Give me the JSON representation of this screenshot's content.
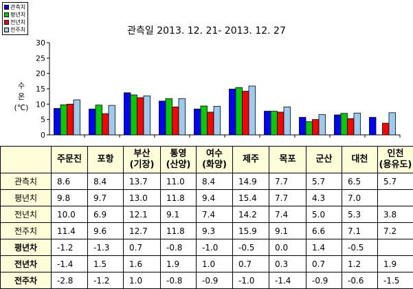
{
  "legend": [
    {
      "label": "관측치",
      "color": "#0000ff"
    },
    {
      "label": "평년치",
      "color": "#00cc00"
    },
    {
      "label": "전년치",
      "color": "#ff0000"
    },
    {
      "label": "전주치",
      "color": "#99ccee"
    }
  ],
  "chart_data": {
    "type": "bar",
    "title": "관측일 2013. 12. 21-  2013. 12. 27",
    "ylabel_chars": [
      "수",
      "온",
      "(℃)"
    ],
    "ylim": [
      0,
      30
    ],
    "yticks": [
      0,
      5,
      10,
      15,
      20,
      25,
      30
    ],
    "grid": false,
    "legend_position": "top-left",
    "categories": [
      "주문진",
      "포항",
      "부산(기장)",
      "통영(산양)",
      "여수(화양)",
      "제주",
      "목포",
      "군산",
      "대천",
      "인천(용유도)"
    ],
    "series": [
      {
        "name": "관측치",
        "color": "#0000ff",
        "values": [
          8.6,
          8.4,
          13.7,
          11.0,
          8.4,
          14.9,
          7.7,
          5.7,
          6.5,
          5.7
        ]
      },
      {
        "name": "평년치",
        "color": "#00cc00",
        "values": [
          9.8,
          9.7,
          13.0,
          11.8,
          9.4,
          15.4,
          7.7,
          4.3,
          7.0,
          null
        ]
      },
      {
        "name": "전년치",
        "color": "#ff0000",
        "values": [
          10.0,
          6.9,
          12.1,
          9.1,
          7.4,
          14.2,
          7.4,
          5.0,
          5.3,
          3.8
        ]
      },
      {
        "name": "전주치",
        "color": "#99ccee",
        "values": [
          11.4,
          9.6,
          12.7,
          11.8,
          9.3,
          15.9,
          9.1,
          6.6,
          7.1,
          7.2
        ]
      }
    ]
  },
  "table": {
    "header": [
      [
        "주문진"
      ],
      [
        "포항"
      ],
      [
        "부산",
        "(기장)"
      ],
      [
        "통영",
        "(산양)"
      ],
      [
        "여수",
        "(화양)"
      ],
      [
        "제주"
      ],
      [
        "목포"
      ],
      [
        "군산"
      ],
      [
        "대천"
      ],
      [
        "인천",
        "(용유도)"
      ]
    ],
    "rows": [
      {
        "label": "관측치",
        "bold": false,
        "cells": [
          "8.6",
          "8.4",
          "13.7",
          "11.0",
          "8.4",
          "14.9",
          "7.7",
          "5.7",
          "6.5",
          "5.7"
        ]
      },
      {
        "label": "평년치",
        "bold": false,
        "cells": [
          "9.8",
          "9.7",
          "13.0",
          "11.8",
          "9.4",
          "15.4",
          "7.7",
          "4.3",
          "7.0",
          ""
        ]
      },
      {
        "label": "전년치",
        "bold": false,
        "cells": [
          "10.0",
          "6.9",
          "12.1",
          "9.1",
          "7.4",
          "14.2",
          "7.4",
          "5.0",
          "5.3",
          "3.8"
        ]
      },
      {
        "label": "전주치",
        "bold": false,
        "cells": [
          "11.4",
          "9.6",
          "12.7",
          "11.8",
          "9.3",
          "15.9",
          "9.1",
          "6.6",
          "7.1",
          "7.2"
        ]
      },
      {
        "label": "평년차",
        "bold": true,
        "cells": [
          "-1.2",
          "-1.3",
          "0.7",
          "-0.8",
          "-1.0",
          "-0.5",
          "0.0",
          "1.4",
          "-0.5",
          ""
        ]
      },
      {
        "label": "전년차",
        "bold": true,
        "cells": [
          "-1.4",
          "1.5",
          "1.6",
          "1.9",
          "1.0",
          "0.7",
          "0.3",
          "0.7",
          "1.2",
          "1.9"
        ]
      },
      {
        "label": "전주차",
        "bold": true,
        "cells": [
          "-2.8",
          "-1.2",
          "1.0",
          "-0.8",
          "-0.9",
          "-1.0",
          "-1.4",
          "-0.9",
          "-0.6",
          "-1.5"
        ]
      }
    ]
  }
}
